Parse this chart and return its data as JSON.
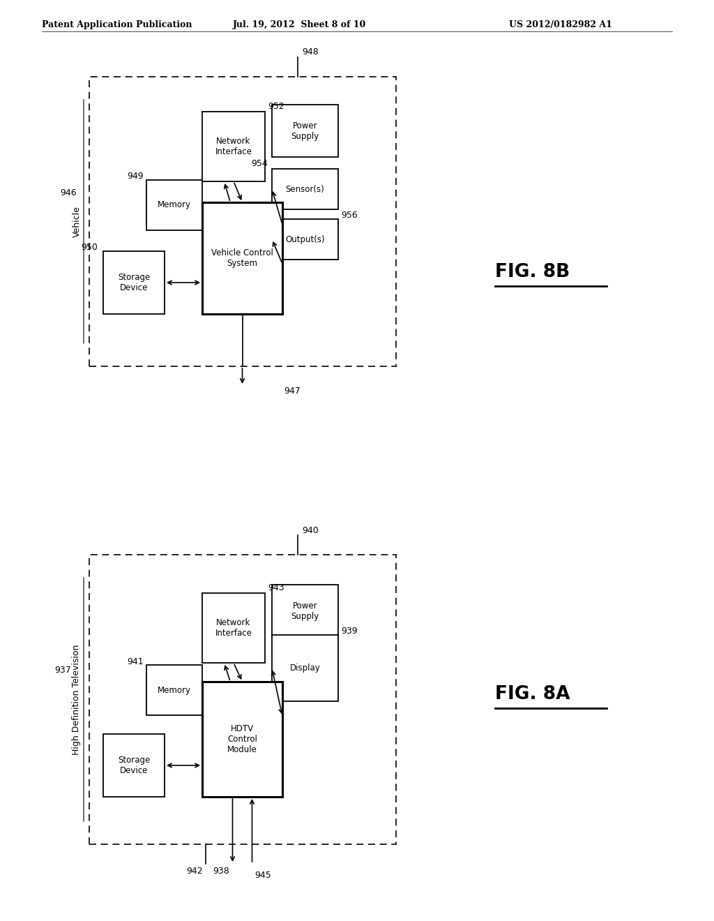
{
  "header_left": "Patent Application Publication",
  "header_mid": "Jul. 19, 2012  Sheet 8 of 10",
  "header_right": "US 2012/0182982 A1",
  "fig8b_label": "FIG. 8B",
  "fig8a_label": "FIG. 8A",
  "bg_color": "#ffffff"
}
